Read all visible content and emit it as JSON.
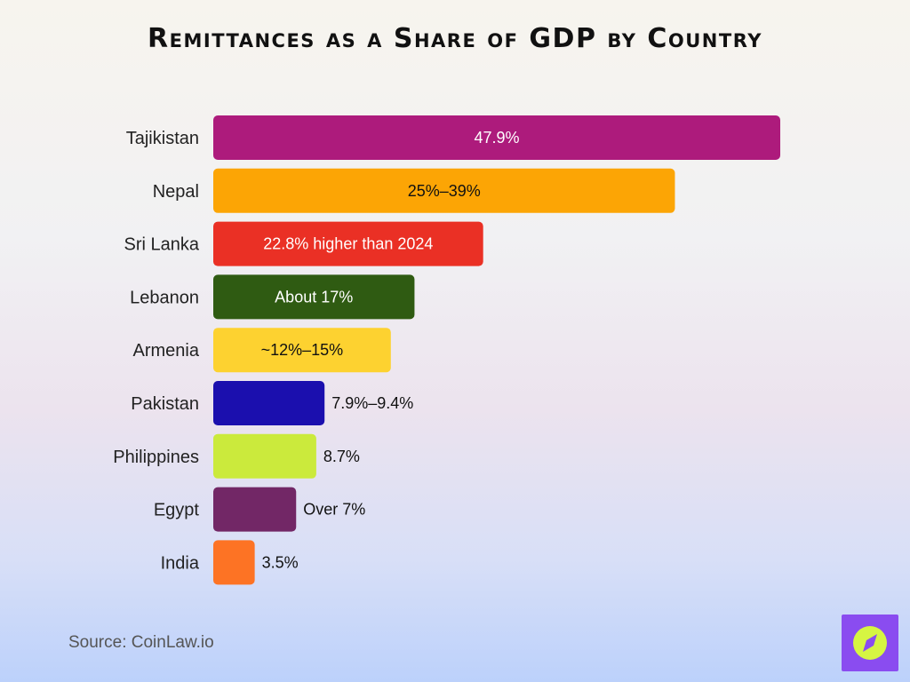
{
  "chart_data": {
    "type": "bar",
    "orientation": "horizontal",
    "title": "Remittances as a Share of GDP by Country",
    "categories": [
      "Tajikistan",
      "Nepal",
      "Sri Lanka",
      "Lebanon",
      "Armenia",
      "Pakistan",
      "Philippines",
      "Egypt",
      "India"
    ],
    "values": [
      47.9,
      39,
      22.8,
      17,
      15,
      9.4,
      8.7,
      7,
      3.5
    ],
    "labels": [
      "47.9%",
      "25%–39%",
      "22.8% higher than 2024",
      "About 17%",
      "~12%–15%",
      "7.9%–9.4%",
      "8.7%",
      "Over 7%",
      "3.5%"
    ],
    "colors": [
      "#ad1b7c",
      "#fca505",
      "#ea3025",
      "#2f5b12",
      "#fdd230",
      "#1b0fae",
      "#cbea3c",
      "#722766",
      "#fd7324"
    ],
    "label_colors": [
      "#ffffff",
      "#111111",
      "#ffffff",
      "#ffffff",
      "#111111",
      "#111111",
      "#111111",
      "#111111",
      "#111111"
    ],
    "label_position": [
      "inside",
      "inside",
      "inside",
      "inside",
      "inside",
      "outside",
      "outside",
      "outside",
      "outside"
    ],
    "xlim": [
      0,
      47.9
    ],
    "grid": false,
    "legend": "none"
  },
  "footer": {
    "source": "Source: CoinLaw.io"
  },
  "logo": {
    "icon": "compass-icon",
    "bg_color": "#8a4cf0",
    "circle_color": "#d6f542"
  }
}
